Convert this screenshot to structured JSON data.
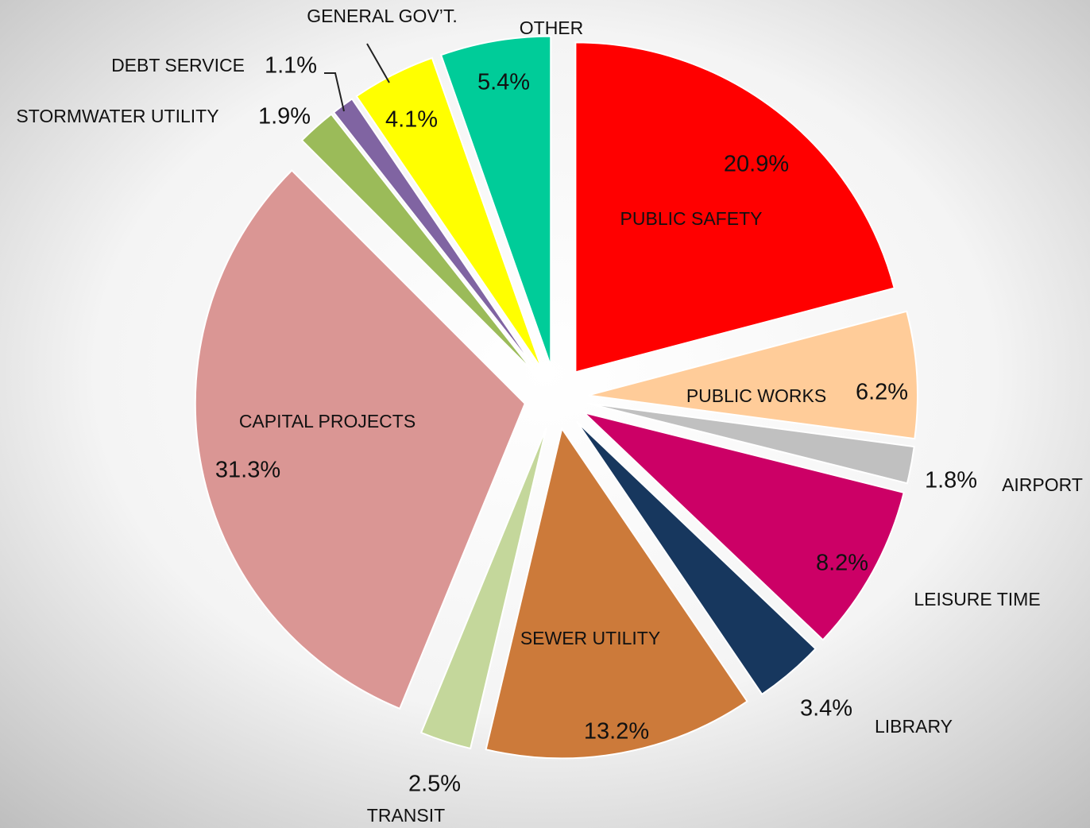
{
  "chart_data": {
    "type": "pie",
    "categories": [
      "PUBLIC SAFETY",
      "PUBLIC WORKS",
      "AIRPORT",
      "LEISURE TIME",
      "LIBRARY",
      "SEWER UTILITY",
      "TRANSIT",
      "CAPITAL PROJECTS",
      "STORMWATER UTILITY",
      "DEBT SERVICE",
      "GENERAL GOV’T.",
      "OTHER"
    ],
    "values": [
      20.9,
      6.2,
      1.8,
      8.2,
      3.4,
      13.2,
      2.5,
      31.3,
      1.9,
      1.1,
      4.1,
      5.4
    ],
    "value_labels": [
      "20.9%",
      "6.2%",
      "1.8%",
      "8.2%",
      "3.4%",
      "13.2%",
      "2.5%",
      "31.3%",
      "1.9%",
      "1.1%",
      "4.1%",
      "5.4%"
    ],
    "colors": [
      "#ff0000",
      "#ffcc99",
      "#c0c0c0",
      "#cc0066",
      "#17375e",
      "#cc7a3a",
      "#c4d79b",
      "#da9694",
      "#9bbb59",
      "#8064a2",
      "#ffff00",
      "#00cc99"
    ]
  }
}
